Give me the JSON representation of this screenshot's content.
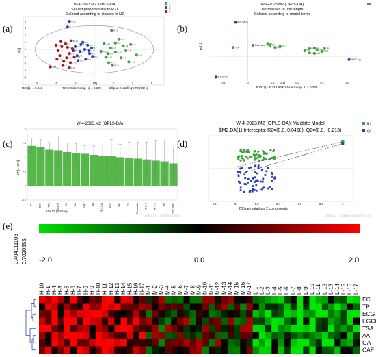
{
  "panel_labels": {
    "a": "(a)",
    "b": "(b)",
    "c": "(c)",
    "d": "(d)",
    "e": "(e)"
  },
  "colors": {
    "green": "#3aa53a",
    "blue": "#2b3fa8",
    "red": "#a31a1a",
    "ellipse": "#999999"
  },
  "panel_a": {
    "title_lines": [
      "W-4-2023.M2 (OPLS-DA)",
      "Scaled proportionally to R2X",
      "Colored according to classes in M2"
    ],
    "legend": [
      "1",
      "2",
      "3"
    ],
    "xlabel": "t[1]",
    "ylabel": "to[1]",
    "footer_left": "R2X[1] = 0.343",
    "footer_mid": "R2X[XSide Comp. 1] = 0.239",
    "footer_right": "Ellipse: Hotelling's T2 (95%)",
    "xticks": [
      "-6",
      "-4",
      "-2",
      "0",
      "2",
      "4",
      "6"
    ],
    "yticks": [
      "4",
      "3",
      "2",
      "1",
      "0",
      "-1",
      "-2",
      "-3",
      "-4"
    ]
  },
  "panel_b": {
    "title_lines": [
      "W-4-2023.M2 (OPLS-DA)",
      "Normalized to unit length",
      "Colored according to model terms"
    ],
    "xlabel": "p[1]",
    "ylabel": "po[1]",
    "footer": "R2X[1] = 0.343   R2X[XSide Comp. 1] = 0.239",
    "xticks": [
      "-0.1",
      "0",
      "0.1",
      "0.2",
      "0.3",
      "0.4"
    ],
    "points": [
      {
        "label": "$M2.DA(2)",
        "x": -0.05,
        "y": 0.62,
        "color": "blue"
      },
      {
        "label": "$M2.DA(1)",
        "x": 0.41,
        "y": -0.06,
        "color": "blue"
      },
      {
        "label": "$M2.DA(3)",
        "x": -0.13,
        "y": -0.38,
        "color": "blue"
      },
      {
        "label": "TSA",
        "x": -0.06,
        "y": 0.16,
        "color": "green"
      },
      {
        "label": "Total sugar",
        "x": 0.02,
        "y": 0.2,
        "color": "green"
      },
      {
        "label": "TP",
        "x": 0.08,
        "y": 0.22,
        "color": "green"
      },
      {
        "label": "TF",
        "x": 0.09,
        "y": 0.2,
        "color": "green"
      },
      {
        "label": "TF-Y",
        "x": 0.11,
        "y": 0.16,
        "color": "green"
      },
      {
        "label": "TF-1",
        "x": 0.13,
        "y": 0.18,
        "color": "green"
      },
      {
        "label": "ECG",
        "x": 0.25,
        "y": 0.14,
        "color": "green"
      },
      {
        "label": "GA",
        "x": 0.28,
        "y": 0.12,
        "color": "green"
      },
      {
        "label": "EC",
        "x": 0.27,
        "y": 0.15,
        "color": "green"
      },
      {
        "label": "TB",
        "x": 0.31,
        "y": 0.14,
        "color": "green"
      },
      {
        "label": "ECG",
        "x": 0.3,
        "y": 0.09,
        "color": "green"
      },
      {
        "label": "AA",
        "x": 0.25,
        "y": 0.06,
        "color": "green"
      },
      {
        "label": "CAF",
        "x": 0.27,
        "y": 0.05,
        "color": "green"
      },
      {
        "label": "TR",
        "x": 0.23,
        "y": 0.1,
        "color": "green"
      }
    ]
  },
  "panel_c": {
    "title": "W-4-2023.M2 (OPLS-DA)",
    "ylabel": "VIP[1+4+0]",
    "xlabel": "Var ID (Primary)",
    "yticks": [
      "2",
      "1.5",
      "1",
      "0.5",
      "0",
      "-0.5"
    ],
    "footer": "SIMCA 14.1 - 2023/5/25 10:07:44"
  },
  "panel_d": {
    "title": "W-4-2023.M2 (OPLS-DA): Validate Model",
    "subtitle": "$M2.DA(1) Intercepts: R2=(0.0, 0.0468), Q2=(0.0, -0.213)",
    "legend": [
      "R2",
      "Q2"
    ],
    "xlabel": "200 permutations 2 components",
    "xticks": [
      "-0.2",
      "0",
      "0.2",
      "0.4",
      "0.6",
      "0.8",
      "1"
    ],
    "footer": "SIMCA 14.1 - 2023/5/25 10:44:53 (UTC+8)"
  },
  "panel_e": {
    "scale_labels": [
      "-2.0",
      "0.0",
      "2.0"
    ],
    "dendro_labels": [
      "0.404111103",
      "0.7020555"
    ],
    "rows": [
      "EC",
      "TP",
      "ECG",
      "EGCG",
      "TSA",
      "AA",
      "GA",
      "CAF"
    ],
    "cols": [
      "H-10",
      "H-1",
      "H-4",
      "H-3",
      "H-5",
      "H-6",
      "H-7",
      "H-8",
      "H-9",
      "H-10",
      "H-11",
      "H-12",
      "H-13",
      "H-14",
      "H-15",
      "H-16",
      "H-17",
      "M-1",
      "M-2",
      "M-3",
      "M-4",
      "M-5",
      "M-6",
      "M-7",
      "M-8",
      "M-9",
      "M-10",
      "M-11",
      "M-12",
      "M-13",
      "M-14",
      "M-15",
      "M-16",
      "M-17",
      "L-1",
      "L-2",
      "L-3",
      "L-4",
      "L-5",
      "L-6",
      "L-7",
      "L-8",
      "L-9",
      "L-10",
      "L-11",
      "L-12",
      "L-13",
      "L-14",
      "L-15",
      "L-16",
      "L-17"
    ]
  },
  "chart_data": [
    {
      "type": "scatter",
      "title": "W-4-2023.M2 (OPLS-DA)",
      "xlabel": "t[1]",
      "ylabel": "to[1]",
      "xlim": [
        -7,
        7
      ],
      "ylim": [
        -4.5,
        4.5
      ],
      "series": [
        {
          "name": "1",
          "color": "green",
          "points": [
            {
              "label": "H-1",
              "x": 2.6,
              "y": 1.4
            },
            {
              "label": "H-2",
              "x": 3.8,
              "y": 0.7
            },
            {
              "label": "H-3",
              "x": 4.4,
              "y": -0.8
            },
            {
              "label": "H-4",
              "x": 2.2,
              "y": 0.9
            },
            {
              "label": "H-5",
              "x": 3.3,
              "y": -0.2
            },
            {
              "label": "H-6",
              "x": 2.8,
              "y": -1.2
            },
            {
              "label": "H-7",
              "x": 1.7,
              "y": 0.2
            },
            {
              "label": "H-8",
              "x": 3.0,
              "y": 0.5
            },
            {
              "label": "H-9",
              "x": 1.4,
              "y": -0.6
            },
            {
              "label": "H-10",
              "x": 2.2,
              "y": -0.4
            },
            {
              "label": "H-11",
              "x": 1.8,
              "y": 2.7
            },
            {
              "label": "H-12",
              "x": 3.6,
              "y": -1.8
            },
            {
              "label": "H-13",
              "x": 1.2,
              "y": -1.1
            },
            {
              "label": "H-14",
              "x": 0.7,
              "y": -0.3
            },
            {
              "label": "H-15",
              "x": 1.9,
              "y": -2.3
            },
            {
              "label": "H-16",
              "x": 1.0,
              "y": 0.8
            },
            {
              "label": "H-17",
              "x": 1.5,
              "y": -1.9
            }
          ]
        },
        {
          "name": "2",
          "color": "blue",
          "points": [
            {
              "label": "M-1",
              "x": -1.0,
              "y": 0.0
            },
            {
              "label": "M-2",
              "x": -0.7,
              "y": 0.6
            },
            {
              "label": "M-3",
              "x": -1.5,
              "y": -0.3
            },
            {
              "label": "M-4",
              "x": -2.0,
              "y": 0.4
            },
            {
              "label": "M-5",
              "x": -0.5,
              "y": -0.6
            },
            {
              "label": "M-6",
              "x": -1.2,
              "y": 1.0
            },
            {
              "label": "M-7",
              "x": -0.3,
              "y": 0.2
            },
            {
              "label": "M-8",
              "x": -1.8,
              "y": -0.9
            },
            {
              "label": "M-9",
              "x": -0.9,
              "y": -1.4
            },
            {
              "label": "M-10",
              "x": -2.2,
              "y": -0.2
            },
            {
              "label": "M-11",
              "x": -0.2,
              "y": -1.0
            },
            {
              "label": "M-12",
              "x": -2.6,
              "y": 4.0
            },
            {
              "label": "M-13",
              "x": -2.4,
              "y": 1.2
            },
            {
              "label": "M-14",
              "x": -1.4,
              "y": 0.7
            },
            {
              "label": "M-15",
              "x": -0.6,
              "y": -0.2
            },
            {
              "label": "M-16",
              "x": -2.8,
              "y": 3.2
            },
            {
              "label": "M-17",
              "x": -1.7,
              "y": -1.6
            }
          ]
        },
        {
          "name": "3",
          "color": "red",
          "points": [
            {
              "label": "L-1",
              "x": -3.4,
              "y": 0.4
            },
            {
              "label": "L-2",
              "x": -3.0,
              "y": 0.8
            },
            {
              "label": "L-3",
              "x": -2.6,
              "y": -0.6
            },
            {
              "label": "L-4",
              "x": -3.8,
              "y": -0.2
            },
            {
              "label": "L-5",
              "x": -2.9,
              "y": -1.2
            },
            {
              "label": "L-6",
              "x": -3.6,
              "y": -0.9
            },
            {
              "label": "L-7",
              "x": -2.3,
              "y": 0.1
            },
            {
              "label": "L-8",
              "x": -4.0,
              "y": 0.6
            },
            {
              "label": "L-9",
              "x": -3.2,
              "y": -1.7
            },
            {
              "label": "L-10",
              "x": -2.5,
              "y": -1.9
            },
            {
              "label": "L-11",
              "x": -3.9,
              "y": -1.4
            },
            {
              "label": "L-12",
              "x": -2.8,
              "y": 0.3
            },
            {
              "label": "L-13",
              "x": -3.3,
              "y": -2.3
            },
            {
              "label": "L-14",
              "x": -2.1,
              "y": -1.1
            },
            {
              "label": "L-15",
              "x": -3.5,
              "y": 1.1
            },
            {
              "label": "L-16",
              "x": -2.6,
              "y": -2.6
            },
            {
              "label": "L-17",
              "x": -4.6,
              "y": -2.5
            }
          ]
        }
      ]
    },
    {
      "type": "bar",
      "title": "W-4-2023.M2 (OPLS-DA)",
      "ylabel": "VIP[1+4+0]",
      "xlabel": "Var ID (Primary)",
      "ylim": [
        -0.5,
        2
      ],
      "categories": [
        "TP",
        "ECG",
        "TSA",
        "EGCG",
        "EC",
        "GA",
        "CAF",
        "AA",
        "TF-3,3'-G",
        "EGC",
        "TRs",
        "TF",
        "Flavonoids",
        "TF-3'-G",
        "TF-3-G",
        "TBs",
        "Total sugar"
      ],
      "values": [
        1.4,
        1.36,
        1.26,
        1.24,
        1.18,
        1.15,
        1.12,
        1.08,
        1.06,
        1.03,
        1.0,
        0.98,
        0.95,
        0.92,
        0.88,
        0.85,
        0.78
      ],
      "errors": [
        0.28,
        0.26,
        0.26,
        0.5,
        0.32,
        0.34,
        0.3,
        0.32,
        0.38,
        0.6,
        0.46,
        0.55,
        0.58,
        0.62,
        0.7,
        0.75,
        0.58
      ]
    },
    {
      "type": "scatter",
      "title": "W-4-2023.M2 (OPLS-DA): Validate Model",
      "xlabel": "200 permutations 2 components",
      "xlim": [
        -0.25,
        1.1
      ],
      "ylim": [
        -1.05,
        1.05
      ],
      "series": [
        {
          "name": "R2",
          "color": "green",
          "intercept": [
            0.0,
            0.0468
          ],
          "original": [
            1.0,
            0.86
          ]
        },
        {
          "name": "Q2",
          "color": "blue",
          "intercept": [
            0.0,
            -0.213
          ],
          "original": [
            1.0,
            0.8
          ]
        }
      ]
    },
    {
      "type": "heatmap",
      "rows": [
        "EC",
        "TP",
        "ECG",
        "EGCG",
        "TSA",
        "AA",
        "GA",
        "CAF"
      ],
      "cols": [
        "H-10",
        "H-1",
        "H-4",
        "H-3",
        "H-5",
        "H-6",
        "H-7",
        "H-8",
        "H-9",
        "H-10",
        "H-11",
        "H-12",
        "H-13",
        "H-14",
        "H-15",
        "H-16",
        "H-17",
        "M-1",
        "M-2",
        "M-3",
        "M-4",
        "M-5",
        "M-6",
        "M-7",
        "M-8",
        "M-9",
        "M-10",
        "M-11",
        "M-12",
        "M-13",
        "M-14",
        "M-15",
        "M-16",
        "M-17",
        "L-1",
        "L-2",
        "L-3",
        "L-4",
        "L-5",
        "L-6",
        "L-7",
        "L-8",
        "L-9",
        "L-10",
        "L-11",
        "L-12",
        "L-13",
        "L-14",
        "L-15",
        "L-16",
        "L-17"
      ],
      "scale": [
        -2.0,
        0.0,
        2.0
      ]
    }
  ]
}
